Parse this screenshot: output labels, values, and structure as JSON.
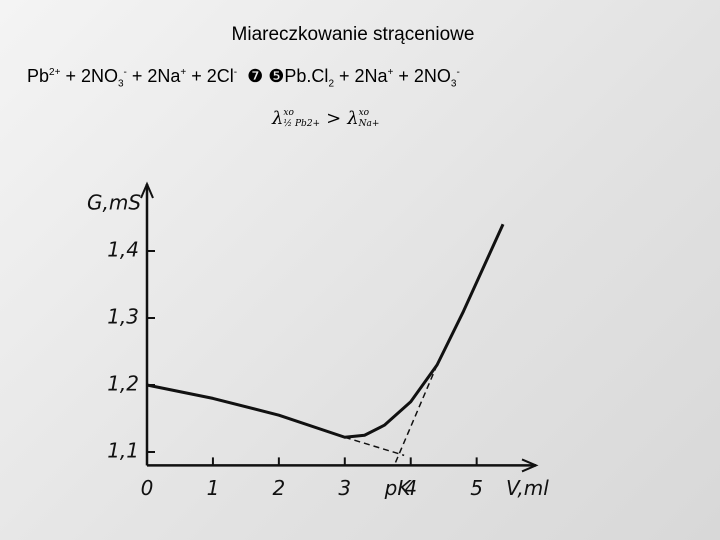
{
  "title": "Miareczkowanie strąceniowe",
  "equation": [
    {
      "text": "Pb",
      "sup": "2+"
    },
    {
      "text": " + 2NO",
      "sub": "3",
      "sup": "-"
    },
    {
      "text": " + 2Na",
      "sup": "+"
    },
    {
      "text": " + 2Cl",
      "sup": "-"
    },
    {
      "text": "  ❼ ❺Pb.Cl",
      "sub": "2"
    },
    {
      "text": " + 2Na",
      "sup": "+"
    },
    {
      "text": " + 2NO",
      "sub": "3",
      "sup": "-"
    }
  ],
  "formula": {
    "left": {
      "symbol": "λ",
      "sup": "xo",
      "sub": "½ Pb2+"
    },
    "relation": ">",
    "right": {
      "symbol": "λ",
      "sup": "xo",
      "sub": "Na+"
    }
  },
  "chart_data": {
    "type": "line",
    "xlabel": "V,ml",
    "ylabel": "G,mS",
    "xlim": [
      0,
      5.9
    ],
    "ylim": [
      1.08,
      1.5
    ],
    "xticks": [
      0,
      1,
      2,
      3,
      {
        "value": 3.8,
        "label": "pK"
      },
      4,
      5
    ],
    "yticks": [
      {
        "value": 1.1,
        "label": "1,1"
      },
      {
        "value": 1.2,
        "label": "1,2"
      },
      {
        "value": 1.3,
        "label": "1,3"
      },
      {
        "value": 1.4,
        "label": "1,4"
      }
    ],
    "series": [
      {
        "color": "#111111",
        "x": [
          0,
          1,
          2,
          3,
          3.3,
          3.6,
          4,
          4.4,
          4.8,
          5.4
        ],
        "values": [
          1.2,
          1.18,
          1.155,
          1.122,
          1.125,
          1.14,
          1.175,
          1.23,
          1.31,
          1.44
        ]
      },
      {
        "color": "#111111",
        "dash": true,
        "x": [
          3,
          3.9
        ],
        "values": [
          1.122,
          1.095
        ]
      },
      {
        "color": "#111111",
        "dash": true,
        "x": [
          4.4,
          3.75
        ],
        "values": [
          1.23,
          1.08
        ]
      }
    ]
  }
}
